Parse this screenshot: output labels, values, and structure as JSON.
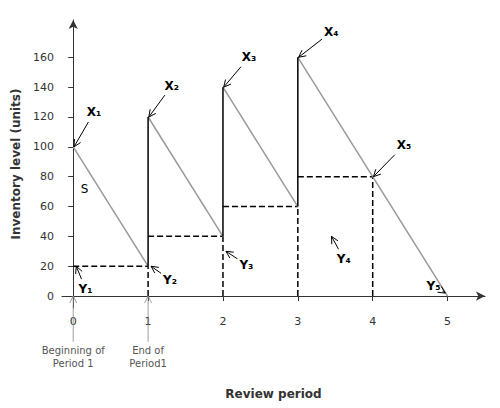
{
  "chart_data": {
    "type": "line",
    "xlabel": "Review period",
    "ylabel": "Inventory level (units)",
    "xlim": [
      -0.15,
      5.5
    ],
    "ylim": [
      -8,
      185
    ],
    "xticks": [
      0,
      1,
      2,
      3,
      4,
      5
    ],
    "yticks": [
      0,
      20,
      40,
      60,
      80,
      100,
      120,
      140,
      160
    ],
    "grid": false,
    "series": [
      {
        "color": "#999999",
        "line_style": "solid",
        "segments": [
          {
            "x": [
              0,
              1
            ],
            "y": [
              100,
              20
            ]
          },
          {
            "x": [
              1,
              2
            ],
            "y": [
              120,
              40
            ]
          },
          {
            "x": [
              2,
              3
            ],
            "y": [
              140,
              60
            ]
          },
          {
            "x": [
              3,
              4
            ],
            "y": [
              160,
              80
            ]
          },
          {
            "x": [
              4,
              5
            ],
            "y": [
              80,
              0
            ]
          }
        ]
      },
      {
        "color": "#000000",
        "line_style": "solid",
        "segments": [
          {
            "x": [
              1,
              1
            ],
            "y": [
              20,
              120
            ]
          },
          {
            "x": [
              2,
              2
            ],
            "y": [
              40,
              140
            ]
          },
          {
            "x": [
              3,
              3
            ],
            "y": [
              60,
              160
            ]
          },
          {
            "x": [
              4,
              4
            ],
            "y": [
              80,
              80
            ]
          }
        ]
      },
      {
        "color": "#000000",
        "line_style": "dashed",
        "segments": [
          {
            "x": [
              0,
              1
            ],
            "y": [
              20,
              20
            ]
          },
          {
            "x": [
              1,
              2
            ],
            "y": [
              40,
              40
            ]
          },
          {
            "x": [
              2,
              3
            ],
            "y": [
              60,
              60
            ]
          },
          {
            "x": [
              3,
              4
            ],
            "y": [
              80,
              80
            ]
          }
        ]
      },
      {
        "color": "#000000",
        "line_style": "dashed",
        "segments": [
          {
            "x": [
              1,
              1
            ],
            "y": [
              0,
              20
            ]
          },
          {
            "x": [
              2,
              2
            ],
            "y": [
              0,
              40
            ]
          },
          {
            "x": [
              3,
              3
            ],
            "y": [
              0,
              60
            ]
          },
          {
            "x": [
              4,
              4
            ],
            "y": [
              0,
              80
            ]
          }
        ]
      }
    ],
    "text_labels": [
      {
        "text": "S",
        "x": 0.1,
        "y": 77
      }
    ],
    "x_annotations": [
      {
        "text": "X₁",
        "x": 0.18,
        "y": 118,
        "arrow_to": [
          0.01,
          100
        ]
      },
      {
        "text": "X₂",
        "x": 1.22,
        "y": 136,
        "arrow_to": [
          1.01,
          120
        ]
      },
      {
        "text": "X₃",
        "x": 2.25,
        "y": 155,
        "arrow_to": [
          2.01,
          140
        ]
      },
      {
        "text": "X₄",
        "x": 3.35,
        "y": 172,
        "arrow_to": [
          3.01,
          160
        ]
      },
      {
        "text": "X₅",
        "x": 4.32,
        "y": 96,
        "arrow_to": [
          4.01,
          80
        ]
      }
    ],
    "y_annotations": [
      {
        "text": "Y₁",
        "x": 0.07,
        "y": 10,
        "arrow_to": [
          0.04,
          20
        ]
      },
      {
        "text": "Y₂",
        "x": 1.2,
        "y": 16,
        "arrow_to": [
          1.04,
          20
        ]
      },
      {
        "text": "Y₃",
        "x": 2.22,
        "y": 26,
        "arrow_to": [
          2.04,
          30
        ]
      },
      {
        "text": "Y₄",
        "x": 3.52,
        "y": 30,
        "arrow_to": [
          3.45,
          40
        ]
      },
      {
        "text": "Y₅",
        "x": 4.72,
        "y": 12,
        "arrow_to": [
          4.97,
          2
        ]
      }
    ],
    "below_annotations": [
      {
        "text": "Beginning of\nPeriod 1",
        "x": 0,
        "y": -32,
        "arrow_to": [
          0,
          0
        ]
      },
      {
        "text": "End of\nPeriod1",
        "x": 1,
        "y": -32,
        "arrow_to": [
          1,
          0
        ]
      }
    ]
  }
}
